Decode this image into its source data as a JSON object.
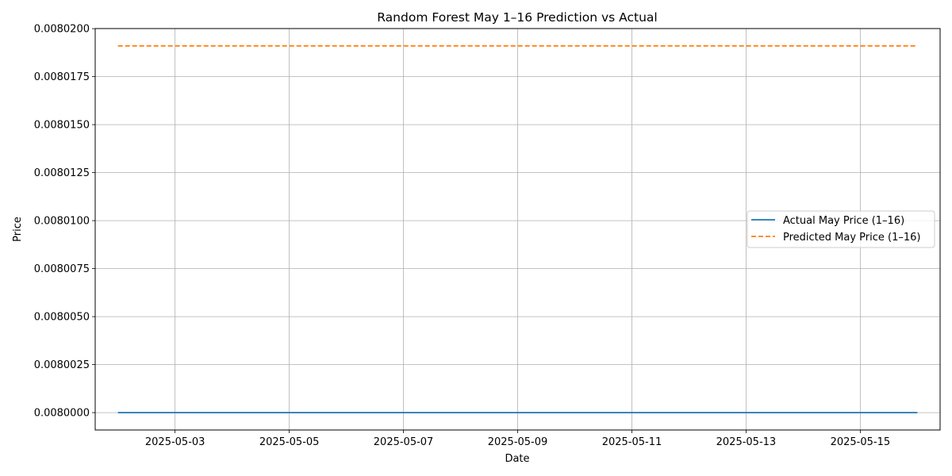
{
  "chart_data": {
    "type": "line",
    "title": "Random Forest May 1–16 Prediction vs Actual",
    "xlabel": "Date",
    "ylabel": "Price",
    "x_type": "date",
    "xlim": [
      "2025-05-01T14:26",
      "2025-05-16T09:33"
    ],
    "ylim": [
      0.007999095,
      0.008020005
    ],
    "x_ticks": [
      "2025-05-03",
      "2025-05-05",
      "2025-05-07",
      "2025-05-09",
      "2025-05-11",
      "2025-05-13",
      "2025-05-15"
    ],
    "y_ticks": [
      "0.0080000",
      "0.0080025",
      "0.0080050",
      "0.0080075",
      "0.0080100",
      "0.0080125",
      "0.0080150",
      "0.0080175",
      "0.0080200"
    ],
    "grid": true,
    "legend_position": "center-right",
    "series": [
      {
        "name": "Actual May Price (1–16)",
        "color": "#1f77b4",
        "style": "solid",
        "x": [
          "2025-05-02",
          "2025-05-03",
          "2025-05-04",
          "2025-05-05",
          "2025-05-06",
          "2025-05-07",
          "2025-05-08",
          "2025-05-09",
          "2025-05-10",
          "2025-05-11",
          "2025-05-12",
          "2025-05-13",
          "2025-05-14",
          "2025-05-15",
          "2025-05-16"
        ],
        "values": [
          0.008,
          0.008,
          0.008,
          0.008,
          0.008,
          0.008,
          0.008,
          0.008,
          0.008,
          0.008,
          0.008,
          0.008,
          0.008,
          0.008,
          0.008
        ]
      },
      {
        "name": "Predicted May Price (1–16)",
        "color": "#ff7f0e",
        "style": "dashed",
        "x": [
          "2025-05-02",
          "2025-05-03",
          "2025-05-04",
          "2025-05-05",
          "2025-05-06",
          "2025-05-07",
          "2025-05-08",
          "2025-05-09",
          "2025-05-10",
          "2025-05-11",
          "2025-05-12",
          "2025-05-13",
          "2025-05-14",
          "2025-05-15",
          "2025-05-16"
        ],
        "values": [
          0.0080191,
          0.0080191,
          0.0080191,
          0.0080191,
          0.0080191,
          0.0080191,
          0.0080191,
          0.0080191,
          0.0080191,
          0.0080191,
          0.0080191,
          0.0080191,
          0.0080191,
          0.0080191,
          0.0080191
        ]
      }
    ]
  }
}
